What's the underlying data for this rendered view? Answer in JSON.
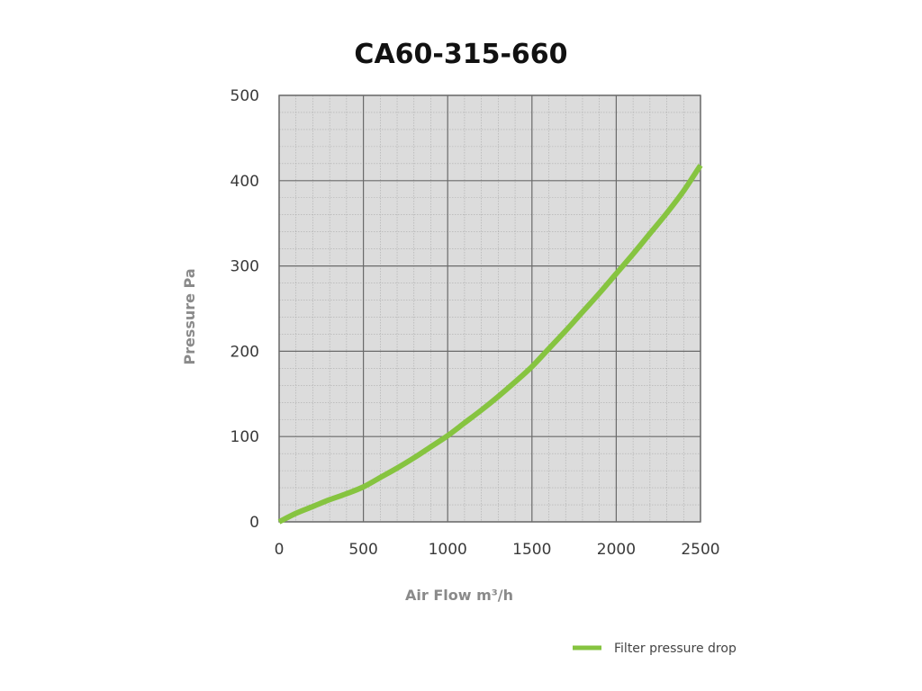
{
  "chart_data": {
    "type": "line",
    "title": "CA60-315-660",
    "xlabel": "Air Flow m³/h",
    "ylabel": "Pressure Pa",
    "xlim": [
      0,
      2500
    ],
    "ylim": [
      0,
      500
    ],
    "x_ticks": [
      0,
      500,
      1000,
      1500,
      2000,
      2500
    ],
    "y_ticks": [
      0,
      100,
      200,
      300,
      400,
      500
    ],
    "x_minor_step": 100,
    "y_minor_step": 20,
    "grid": true,
    "legend_position": "bottom-right",
    "colors": {
      "plot_background": "#dcdcdc",
      "major_grid": "#6a6a6a",
      "minor_grid": "#ababab",
      "series": "#86c440"
    },
    "series": [
      {
        "name": "Filter pressure drop",
        "x": [
          0,
          100,
          200,
          300,
          400,
          500,
          600,
          700,
          800,
          900,
          1000,
          1100,
          1200,
          1300,
          1400,
          1500,
          1600,
          1700,
          1800,
          1900,
          2000,
          2100,
          2200,
          2300,
          2400,
          2500
        ],
        "y": [
          0,
          10,
          18,
          26,
          33,
          41,
          52,
          63,
          75,
          88,
          101,
          116,
          131,
          147,
          164,
          182,
          203,
          224,
          246,
          268,
          291,
          314,
          338,
          362,
          388,
          418
        ]
      }
    ]
  }
}
